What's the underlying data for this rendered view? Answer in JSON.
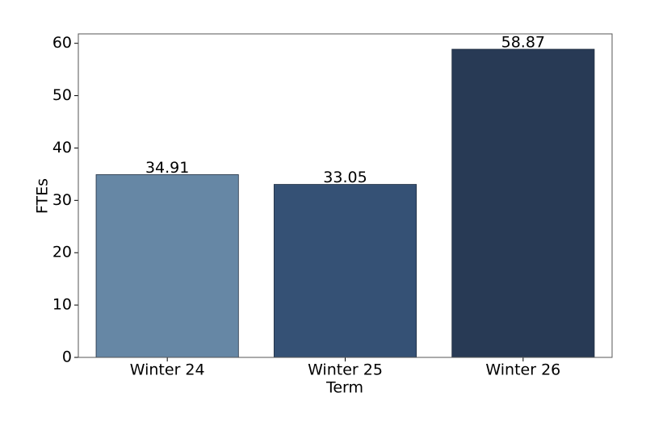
{
  "chart_data": {
    "type": "bar",
    "x_label": "Term",
    "y_label": "FTEs",
    "categories": [
      "Winter 24",
      "Winter 25",
      "Winter 26"
    ],
    "values": [
      34.91,
      33.05,
      58.87
    ],
    "colors": [
      "#6687a5",
      "#355175",
      "#283a55"
    ],
    "ylim": [
      0,
      61.8
    ],
    "yticks": [
      0,
      10,
      20,
      30,
      40,
      50,
      60
    ],
    "grid": false
  }
}
